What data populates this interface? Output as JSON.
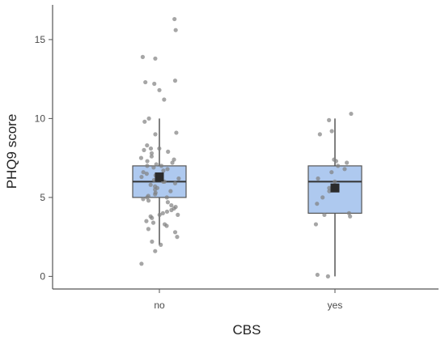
{
  "chart_data": {
    "type": "box",
    "xlabel": "CBS",
    "ylabel": "PHQ9 score",
    "ylim": [
      -0.8,
      17.2
    ],
    "yticks": [
      0,
      5,
      10,
      15
    ],
    "categories": [
      "no",
      "yes"
    ],
    "grid": false,
    "colors": {
      "box_fill": "#aec9ef",
      "box_stroke": "#555555",
      "point": "#808080",
      "mean": "#2b2b2b",
      "axis": "#555555"
    },
    "boxes": [
      {
        "category": "no",
        "whisker_low": 2,
        "q1": 5,
        "median": 6,
        "q3": 7,
        "whisker_high": 10,
        "mean": 6.3
      },
      {
        "category": "yes",
        "whisker_low": 0,
        "q1": 4,
        "median": 6,
        "q3": 7,
        "whisker_high": 10,
        "mean": 5.6
      }
    ],
    "points": [
      {
        "category": "no",
        "values": [
          16.3,
          15.6,
          13.9,
          13.8,
          12.4,
          12.3,
          12.2,
          11.8,
          11.2,
          10.0,
          9.8,
          9.1,
          9.0,
          8.3,
          8.1,
          8.1,
          8.0,
          7.9,
          7.8,
          7.6,
          7.5,
          7.4,
          7.3,
          7.2,
          7.1,
          7.0,
          7.0,
          6.9,
          6.8,
          6.7,
          6.6,
          6.5,
          6.4,
          6.3,
          6.2,
          6.1,
          6.0,
          6.0,
          5.9,
          5.8,
          5.7,
          5.6,
          5.5,
          5.4,
          5.3,
          5.2,
          5.1,
          5.0,
          5.0,
          4.9,
          4.8,
          4.7,
          4.5,
          4.4,
          4.3,
          4.2,
          4.1,
          4.0,
          3.9,
          3.9,
          3.8,
          3.7,
          3.5,
          3.4,
          3.3,
          3.2,
          3.0,
          2.8,
          2.5,
          2.2,
          2.0,
          1.6,
          0.8
        ]
      },
      {
        "category": "yes",
        "values": [
          10.3,
          9.9,
          9.2,
          9.0,
          7.4,
          7.3,
          7.2,
          7.0,
          6.8,
          6.6,
          6.2,
          6.0,
          5.6,
          5.4,
          5.0,
          4.6,
          4.0,
          3.9,
          3.8,
          3.3,
          0.1,
          0.0
        ]
      }
    ]
  }
}
